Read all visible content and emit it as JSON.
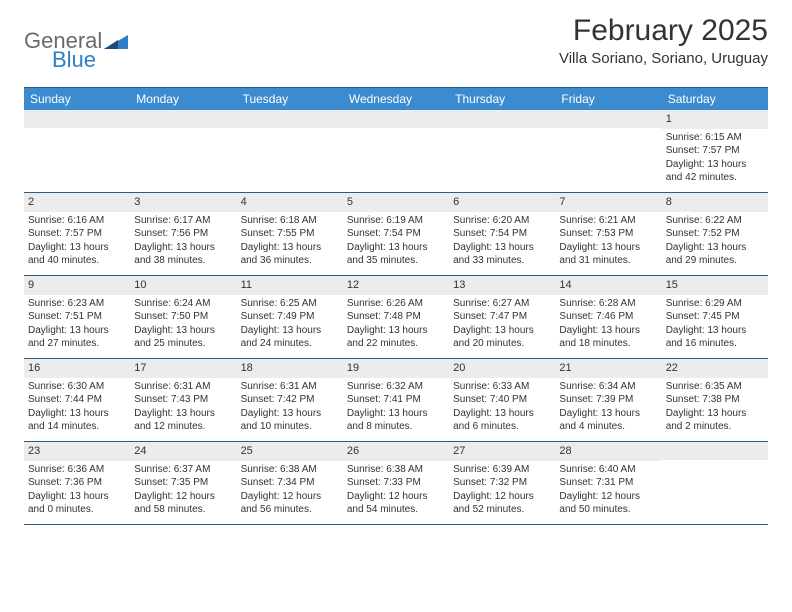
{
  "logo": {
    "general": "General",
    "blue": "Blue"
  },
  "title": "February 2025",
  "subtitle": "Villa Soriano, Soriano, Uruguay",
  "colors": {
    "header_bg": "#3b8bd0",
    "header_text": "#ffffff",
    "border": "#2a5c8a",
    "daynum_bg": "#ececec",
    "text": "#333333",
    "logo_gray": "#6a6a6a",
    "logo_blue": "#2f7fc4"
  },
  "day_headers": [
    "Sunday",
    "Monday",
    "Tuesday",
    "Wednesday",
    "Thursday",
    "Friday",
    "Saturday"
  ],
  "weeks": [
    [
      {
        "n": "",
        "sr": "",
        "ss": "",
        "dl": ""
      },
      {
        "n": "",
        "sr": "",
        "ss": "",
        "dl": ""
      },
      {
        "n": "",
        "sr": "",
        "ss": "",
        "dl": ""
      },
      {
        "n": "",
        "sr": "",
        "ss": "",
        "dl": ""
      },
      {
        "n": "",
        "sr": "",
        "ss": "",
        "dl": ""
      },
      {
        "n": "",
        "sr": "",
        "ss": "",
        "dl": ""
      },
      {
        "n": "1",
        "sr": "Sunrise: 6:15 AM",
        "ss": "Sunset: 7:57 PM",
        "dl": "Daylight: 13 hours and 42 minutes."
      }
    ],
    [
      {
        "n": "2",
        "sr": "Sunrise: 6:16 AM",
        "ss": "Sunset: 7:57 PM",
        "dl": "Daylight: 13 hours and 40 minutes."
      },
      {
        "n": "3",
        "sr": "Sunrise: 6:17 AM",
        "ss": "Sunset: 7:56 PM",
        "dl": "Daylight: 13 hours and 38 minutes."
      },
      {
        "n": "4",
        "sr": "Sunrise: 6:18 AM",
        "ss": "Sunset: 7:55 PM",
        "dl": "Daylight: 13 hours and 36 minutes."
      },
      {
        "n": "5",
        "sr": "Sunrise: 6:19 AM",
        "ss": "Sunset: 7:54 PM",
        "dl": "Daylight: 13 hours and 35 minutes."
      },
      {
        "n": "6",
        "sr": "Sunrise: 6:20 AM",
        "ss": "Sunset: 7:54 PM",
        "dl": "Daylight: 13 hours and 33 minutes."
      },
      {
        "n": "7",
        "sr": "Sunrise: 6:21 AM",
        "ss": "Sunset: 7:53 PM",
        "dl": "Daylight: 13 hours and 31 minutes."
      },
      {
        "n": "8",
        "sr": "Sunrise: 6:22 AM",
        "ss": "Sunset: 7:52 PM",
        "dl": "Daylight: 13 hours and 29 minutes."
      }
    ],
    [
      {
        "n": "9",
        "sr": "Sunrise: 6:23 AM",
        "ss": "Sunset: 7:51 PM",
        "dl": "Daylight: 13 hours and 27 minutes."
      },
      {
        "n": "10",
        "sr": "Sunrise: 6:24 AM",
        "ss": "Sunset: 7:50 PM",
        "dl": "Daylight: 13 hours and 25 minutes."
      },
      {
        "n": "11",
        "sr": "Sunrise: 6:25 AM",
        "ss": "Sunset: 7:49 PM",
        "dl": "Daylight: 13 hours and 24 minutes."
      },
      {
        "n": "12",
        "sr": "Sunrise: 6:26 AM",
        "ss": "Sunset: 7:48 PM",
        "dl": "Daylight: 13 hours and 22 minutes."
      },
      {
        "n": "13",
        "sr": "Sunrise: 6:27 AM",
        "ss": "Sunset: 7:47 PM",
        "dl": "Daylight: 13 hours and 20 minutes."
      },
      {
        "n": "14",
        "sr": "Sunrise: 6:28 AM",
        "ss": "Sunset: 7:46 PM",
        "dl": "Daylight: 13 hours and 18 minutes."
      },
      {
        "n": "15",
        "sr": "Sunrise: 6:29 AM",
        "ss": "Sunset: 7:45 PM",
        "dl": "Daylight: 13 hours and 16 minutes."
      }
    ],
    [
      {
        "n": "16",
        "sr": "Sunrise: 6:30 AM",
        "ss": "Sunset: 7:44 PM",
        "dl": "Daylight: 13 hours and 14 minutes."
      },
      {
        "n": "17",
        "sr": "Sunrise: 6:31 AM",
        "ss": "Sunset: 7:43 PM",
        "dl": "Daylight: 13 hours and 12 minutes."
      },
      {
        "n": "18",
        "sr": "Sunrise: 6:31 AM",
        "ss": "Sunset: 7:42 PM",
        "dl": "Daylight: 13 hours and 10 minutes."
      },
      {
        "n": "19",
        "sr": "Sunrise: 6:32 AM",
        "ss": "Sunset: 7:41 PM",
        "dl": "Daylight: 13 hours and 8 minutes."
      },
      {
        "n": "20",
        "sr": "Sunrise: 6:33 AM",
        "ss": "Sunset: 7:40 PM",
        "dl": "Daylight: 13 hours and 6 minutes."
      },
      {
        "n": "21",
        "sr": "Sunrise: 6:34 AM",
        "ss": "Sunset: 7:39 PM",
        "dl": "Daylight: 13 hours and 4 minutes."
      },
      {
        "n": "22",
        "sr": "Sunrise: 6:35 AM",
        "ss": "Sunset: 7:38 PM",
        "dl": "Daylight: 13 hours and 2 minutes."
      }
    ],
    [
      {
        "n": "23",
        "sr": "Sunrise: 6:36 AM",
        "ss": "Sunset: 7:36 PM",
        "dl": "Daylight: 13 hours and 0 minutes."
      },
      {
        "n": "24",
        "sr": "Sunrise: 6:37 AM",
        "ss": "Sunset: 7:35 PM",
        "dl": "Daylight: 12 hours and 58 minutes."
      },
      {
        "n": "25",
        "sr": "Sunrise: 6:38 AM",
        "ss": "Sunset: 7:34 PM",
        "dl": "Daylight: 12 hours and 56 minutes."
      },
      {
        "n": "26",
        "sr": "Sunrise: 6:38 AM",
        "ss": "Sunset: 7:33 PM",
        "dl": "Daylight: 12 hours and 54 minutes."
      },
      {
        "n": "27",
        "sr": "Sunrise: 6:39 AM",
        "ss": "Sunset: 7:32 PM",
        "dl": "Daylight: 12 hours and 52 minutes."
      },
      {
        "n": "28",
        "sr": "Sunrise: 6:40 AM",
        "ss": "Sunset: 7:31 PM",
        "dl": "Daylight: 12 hours and 50 minutes."
      },
      {
        "n": "",
        "sr": "",
        "ss": "",
        "dl": ""
      }
    ]
  ]
}
